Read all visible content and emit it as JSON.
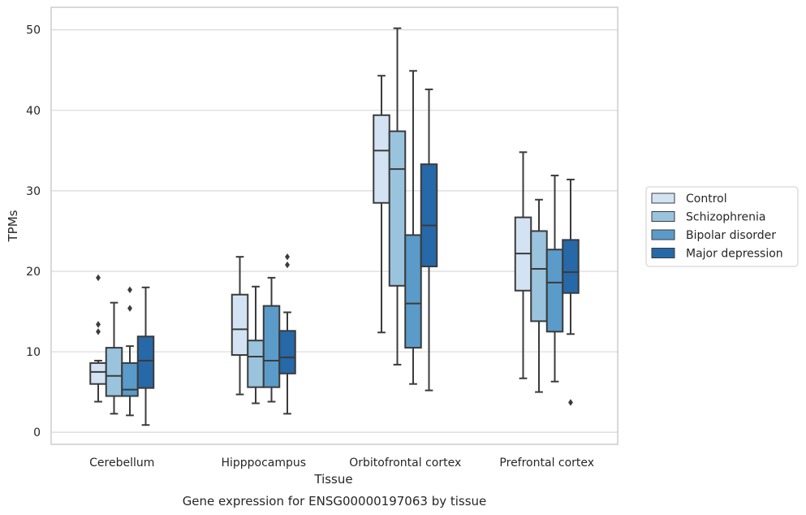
{
  "chart_data": {
    "type": "box",
    "caption": "Gene expression for ENSG00000197063 by tissue",
    "xlabel": "Tissue",
    "ylabel": "TPMs",
    "ylim": [
      -1.5,
      52.8
    ],
    "yticks": [
      0,
      10,
      20,
      30,
      40,
      50
    ],
    "grid": "horizontal",
    "legend_position": "right",
    "categories": [
      "Cerebellum",
      "Hipppocampus",
      "Orbitofrontal cortex",
      "Prefrontal cortex"
    ],
    "series": [
      {
        "name": "Control",
        "color": "#d3e3f3",
        "boxes": [
          {
            "whislo": 3.8,
            "q1": 6.0,
            "med": 7.5,
            "q3": 8.6,
            "whishi": 8.9,
            "fliers": [
              12.5,
              13.4,
              19.2
            ]
          },
          {
            "whislo": 4.7,
            "q1": 9.6,
            "med": 12.8,
            "q3": 17.1,
            "whishi": 21.8,
            "fliers": []
          },
          {
            "whislo": 12.4,
            "q1": 28.5,
            "med": 35.0,
            "q3": 39.4,
            "whishi": 44.3,
            "fliers": []
          },
          {
            "whislo": 6.7,
            "q1": 17.6,
            "med": 22.2,
            "q3": 26.7,
            "whishi": 34.8,
            "fliers": []
          }
        ]
      },
      {
        "name": "Schizophrenia",
        "color": "#9ac4de",
        "boxes": [
          {
            "whislo": 2.3,
            "q1": 4.5,
            "med": 7.0,
            "q3": 10.5,
            "whishi": 16.1,
            "fliers": []
          },
          {
            "whislo": 3.6,
            "q1": 5.6,
            "med": 9.4,
            "q3": 11.4,
            "whishi": 18.1,
            "fliers": []
          },
          {
            "whislo": 8.4,
            "q1": 18.2,
            "med": 32.7,
            "q3": 37.4,
            "whishi": 50.2,
            "fliers": []
          },
          {
            "whislo": 5.0,
            "q1": 13.8,
            "med": 20.3,
            "q3": 25.0,
            "whishi": 28.9,
            "fliers": []
          }
        ]
      },
      {
        "name": "Bipolar disorder",
        "color": "#5a9bc9",
        "boxes": [
          {
            "whislo": 2.1,
            "q1": 4.5,
            "med": 5.3,
            "q3": 8.6,
            "whishi": 10.7,
            "fliers": [
              15.4,
              17.7
            ]
          },
          {
            "whislo": 3.8,
            "q1": 5.6,
            "med": 8.9,
            "q3": 15.7,
            "whishi": 19.2,
            "fliers": []
          },
          {
            "whislo": 6.0,
            "q1": 10.5,
            "med": 16.0,
            "q3": 24.5,
            "whishi": 44.9,
            "fliers": []
          },
          {
            "whislo": 6.3,
            "q1": 12.5,
            "med": 18.6,
            "q3": 22.7,
            "whishi": 31.9,
            "fliers": []
          }
        ]
      },
      {
        "name": "Major depression",
        "color": "#2668a8",
        "boxes": [
          {
            "whislo": 0.9,
            "q1": 5.5,
            "med": 8.9,
            "q3": 11.9,
            "whishi": 18.0,
            "fliers": []
          },
          {
            "whislo": 2.3,
            "q1": 7.3,
            "med": 9.3,
            "q3": 12.6,
            "whishi": 14.9,
            "fliers": [
              20.8,
              21.8
            ]
          },
          {
            "whislo": 5.2,
            "q1": 20.6,
            "med": 25.7,
            "q3": 33.3,
            "whishi": 42.6,
            "fliers": []
          },
          {
            "whislo": 12.2,
            "q1": 17.3,
            "med": 19.9,
            "q3": 23.9,
            "whishi": 31.4,
            "fliers": [
              3.7
            ]
          }
        ]
      }
    ]
  }
}
